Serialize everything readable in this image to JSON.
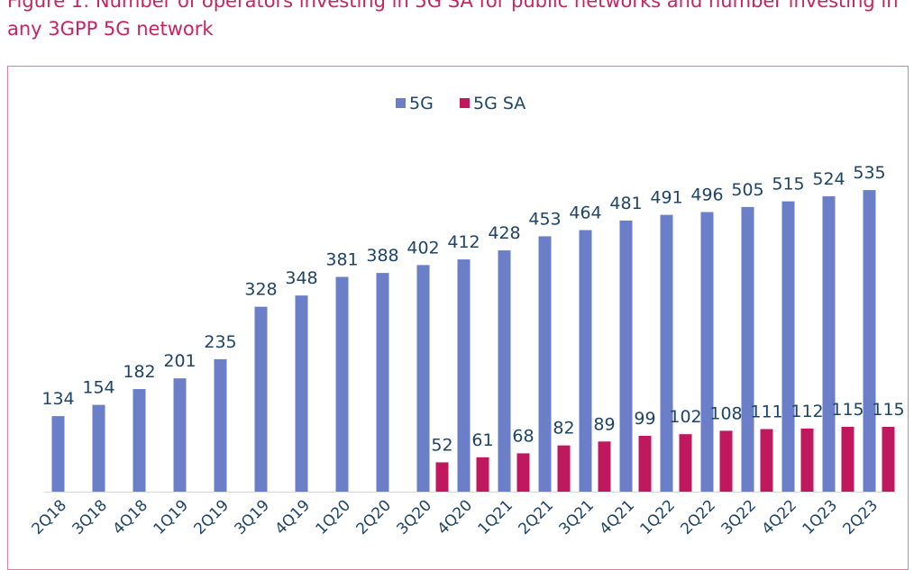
{
  "figure": {
    "title": "Figure 1: Number of operators investing in 5G SA for public networks and number investing in any 3GPP 5G network"
  },
  "chart_data": {
    "type": "bar",
    "categories": [
      "2Q18",
      "3Q18",
      "4Q18",
      "1Q19",
      "2Q19",
      "3Q19",
      "4Q19",
      "1Q20",
      "2Q20",
      "3Q20",
      "4Q20",
      "1Q21",
      "2Q21",
      "3Q21",
      "4Q21",
      "1Q22",
      "2Q22",
      "3Q22",
      "4Q22",
      "1Q23",
      "2Q23"
    ],
    "series": [
      {
        "name": "5G",
        "color": "#6a7fc7",
        "values": [
          134,
          154,
          182,
          201,
          235,
          328,
          348,
          381,
          388,
          402,
          412,
          428,
          453,
          464,
          481,
          491,
          496,
          505,
          515,
          524,
          535
        ]
      },
      {
        "name": "5G SA",
        "color": "#c0185e",
        "values": [
          null,
          null,
          null,
          null,
          null,
          null,
          null,
          null,
          null,
          52,
          61,
          68,
          82,
          89,
          99,
          102,
          108,
          111,
          112,
          115,
          115
        ]
      }
    ],
    "ylim": [
      0,
      600
    ],
    "grid": false,
    "legend": "top-center",
    "data_labels": true
  }
}
